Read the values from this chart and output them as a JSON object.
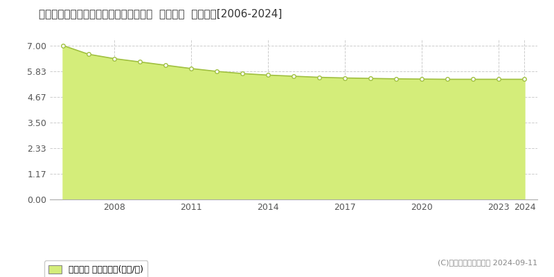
{
  "title": "長野県安曇野市明科七貴５８４２番２外  地価公示  地価推移[2006-2024]",
  "years": [
    2006,
    2007,
    2008,
    2009,
    2010,
    2011,
    2012,
    2013,
    2014,
    2015,
    2016,
    2017,
    2018,
    2019,
    2020,
    2021,
    2022,
    2023,
    2024
  ],
  "values": [
    7.0,
    6.6,
    6.4,
    6.25,
    6.1,
    5.95,
    5.82,
    5.72,
    5.65,
    5.6,
    5.55,
    5.52,
    5.5,
    5.48,
    5.47,
    5.46,
    5.46,
    5.46,
    5.46
  ],
  "line_color": "#a0c040",
  "fill_color": "#d4ed7a",
  "marker_color": "#ffffff",
  "marker_edge_color": "#a0c040",
  "yticks": [
    0,
    1.17,
    2.33,
    3.5,
    4.67,
    5.83,
    7
  ],
  "ylim": [
    0,
    7.3
  ],
  "xlim": [
    2005.5,
    2024.5
  ],
  "xticks": [
    2008,
    2011,
    2014,
    2017,
    2020,
    2023,
    2024
  ],
  "background_color": "#ffffff",
  "grid_color": "#cccccc",
  "legend_label": "地価公示 平均嵪単価(万円/嵪)",
  "copyright_text": "(C)土地価格ドットコム 2024-09-11",
  "title_fontsize": 11,
  "axis_fontsize": 9,
  "legend_fontsize": 9
}
